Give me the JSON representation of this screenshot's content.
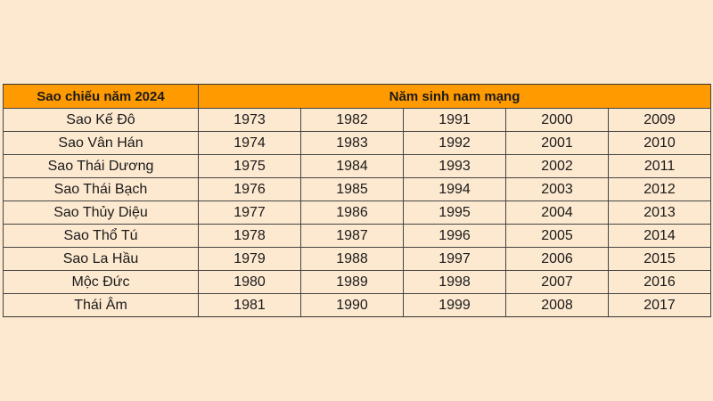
{
  "table": {
    "headers": {
      "star": "Sao chiếu năm 2024",
      "years": "Năm sinh nam mạng"
    },
    "rows": [
      {
        "star": "Sao Kế Đô",
        "years": [
          "1973",
          "1982",
          "1991",
          "2000",
          "2009"
        ]
      },
      {
        "star": "Sao Vân Hán",
        "years": [
          "1974",
          "1983",
          "1992",
          "2001",
          "2010"
        ]
      },
      {
        "star": "Sao Thái Dương",
        "years": [
          "1975",
          "1984",
          "1993",
          "2002",
          "2011"
        ]
      },
      {
        "star": "Sao Thái Bạch",
        "years": [
          "1976",
          "1985",
          "1994",
          "2003",
          "2012"
        ]
      },
      {
        "star": "Sao Thủy Diệu",
        "years": [
          "1977",
          "1986",
          "1995",
          "2004",
          "2013"
        ]
      },
      {
        "star": "Sao Thổ Tú",
        "years": [
          "1978",
          "1987",
          "1996",
          "2005",
          "2014"
        ]
      },
      {
        "star": "Sao La Hầu",
        "years": [
          "1979",
          "1988",
          "1997",
          "2006",
          "2015"
        ]
      },
      {
        "star": "Mộc Đức",
        "years": [
          "1980",
          "1989",
          "1998",
          "2007",
          "2016"
        ]
      },
      {
        "star": "Thái Âm",
        "years": [
          "1981",
          "1990",
          "1999",
          "2008",
          "2017"
        ]
      }
    ]
  }
}
